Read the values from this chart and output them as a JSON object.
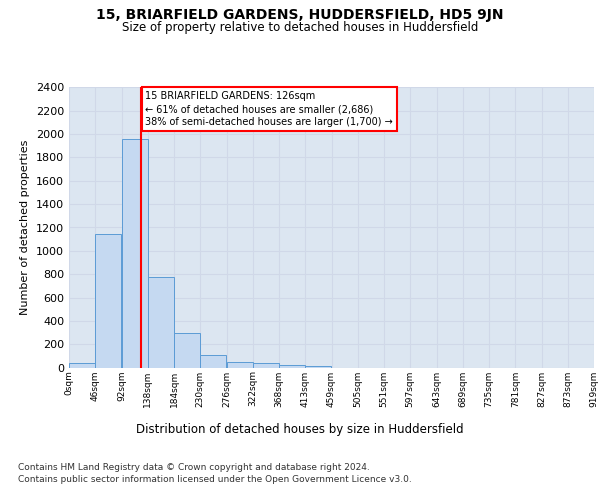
{
  "title": "15, BRIARFIELD GARDENS, HUDDERSFIELD, HD5 9JN",
  "subtitle": "Size of property relative to detached houses in Huddersfield",
  "xlabel": "Distribution of detached houses by size in Huddersfield",
  "ylabel": "Number of detached properties",
  "bin_labels": [
    "0sqm",
    "46sqm",
    "92sqm",
    "138sqm",
    "184sqm",
    "230sqm",
    "276sqm",
    "322sqm",
    "368sqm",
    "413sqm",
    "459sqm",
    "505sqm",
    "551sqm",
    "597sqm",
    "643sqm",
    "689sqm",
    "735sqm",
    "781sqm",
    "827sqm",
    "873sqm",
    "919sqm"
  ],
  "bar_values": [
    35,
    1140,
    1960,
    775,
    300,
    105,
    48,
    40,
    25,
    15,
    0,
    0,
    0,
    0,
    0,
    0,
    0,
    0,
    0,
    0
  ],
  "bar_color": "#c5d9f1",
  "bar_edge_color": "#5b9bd5",
  "grid_color": "#d0d8e8",
  "background_color": "#dce6f1",
  "annotation_box_text": "15 BRIARFIELD GARDENS: 126sqm\n← 61% of detached houses are smaller (2,686)\n38% of semi-detached houses are larger (1,700) →",
  "red_line_x": 126,
  "ylim": [
    0,
    2400
  ],
  "yticks": [
    0,
    200,
    400,
    600,
    800,
    1000,
    1200,
    1400,
    1600,
    1800,
    2000,
    2200,
    2400
  ],
  "footer_line1": "Contains HM Land Registry data © Crown copyright and database right 2024.",
  "footer_line2": "Contains public sector information licensed under the Open Government Licence v3.0.",
  "bin_width": 46
}
